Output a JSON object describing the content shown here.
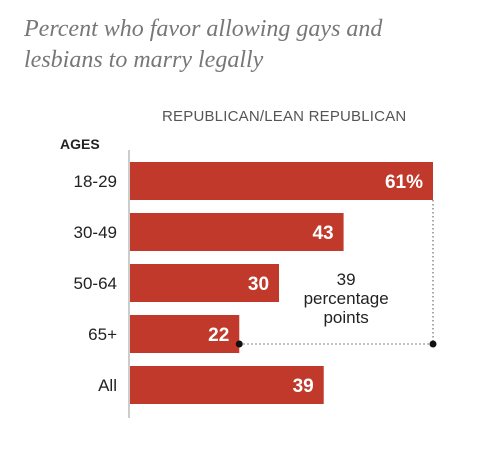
{
  "title": "Percent who favor allowing gays and lesbians to marry legally",
  "series_header": "REPUBLICAN/LEAN REPUBLICAN",
  "ages_label": "AGES",
  "colors": {
    "bar": "#C0392B",
    "axis": "#999999",
    "title": "#777777",
    "dots": "#111111"
  },
  "annotation": {
    "value_line": "39",
    "text_lines": [
      "percentage",
      "points"
    ],
    "from_category": "65+",
    "to_category": "18-29"
  },
  "chart_data": {
    "type": "bar",
    "orientation": "horizontal",
    "title": "Percent who favor allowing gays and lesbians to marry legally",
    "xlabel": "",
    "ylabel": "AGES",
    "categories": [
      "18-29",
      "30-49",
      "50-64",
      "65+",
      "All"
    ],
    "series": [
      {
        "name": "REPUBLICAN/LEAN REPUBLICAN",
        "values": [
          61,
          43,
          30,
          22,
          39
        ],
        "labels": [
          "61%",
          "43",
          "30",
          "22",
          "39"
        ]
      }
    ],
    "xlim": [
      0,
      61
    ],
    "grid": false,
    "legend": "top"
  }
}
